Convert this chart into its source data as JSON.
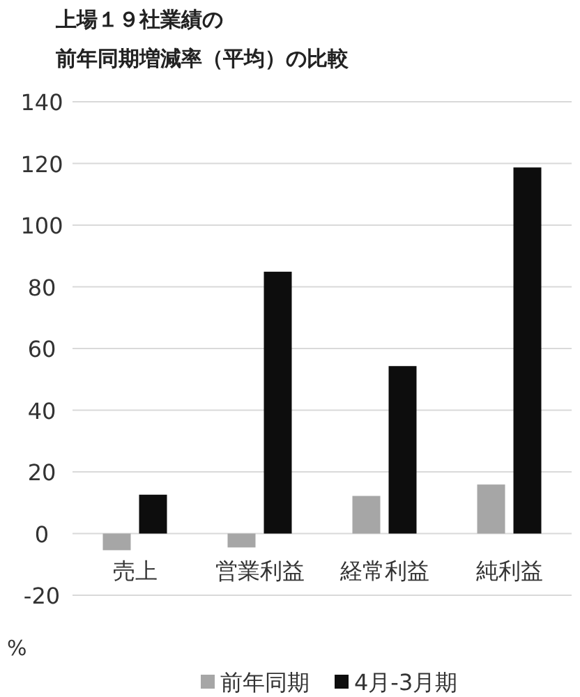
{
  "chart_data": {
    "type": "bar",
    "title": "上場１９社業績の",
    "subtitle": "前年同期増減率（平均）の比較",
    "ylabel": "%",
    "categories": [
      "売上",
      "営業利益",
      "経常利益",
      "純利益"
    ],
    "series": [
      {
        "name": "前年同期",
        "color": "#a6a6a6",
        "values": [
          -5.4,
          -4.5,
          12.2,
          15.9
        ]
      },
      {
        "name": "4月-3月期",
        "color": "#0d0d0d",
        "values": [
          12.6,
          84.9,
          54.3,
          118.7
        ]
      }
    ],
    "ylim": [
      -20,
      140
    ],
    "yticks": [
      -20,
      0,
      20,
      40,
      60,
      80,
      100,
      120,
      140
    ],
    "grid": "y",
    "legend": "bottom"
  }
}
